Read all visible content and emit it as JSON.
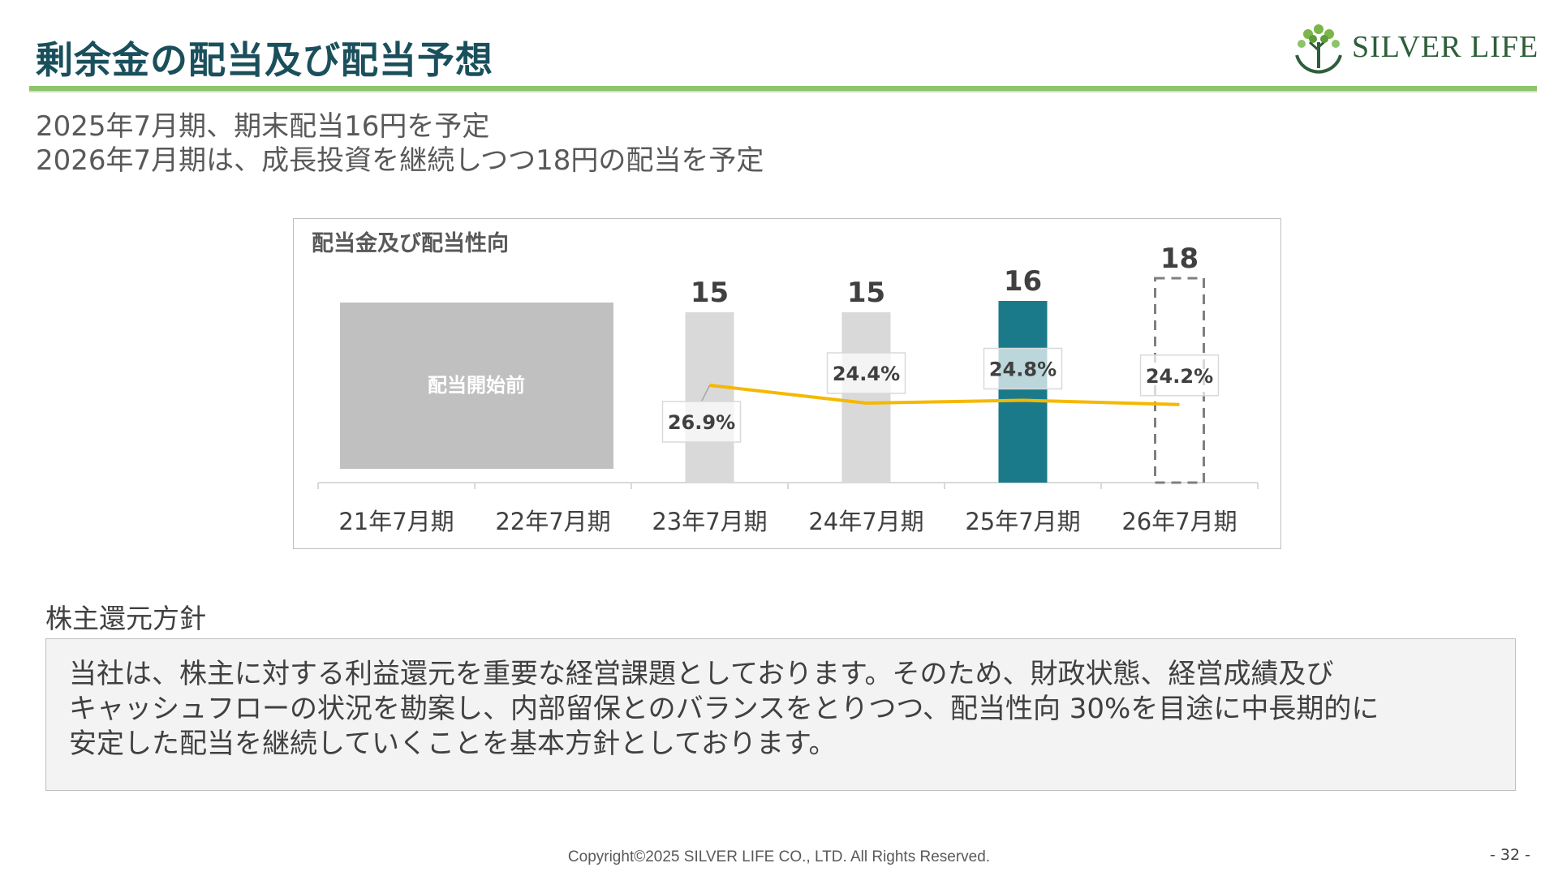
{
  "header": {
    "title": "剰余金の配当及び配当予想",
    "logo_text": "SILVER LIFE"
  },
  "lead": {
    "line1": "2025年7月期、期末配当16円を予定",
    "line2": "2026年7月期は、成長投資を継続しつつ18円の配当を予定"
  },
  "chart_data": {
    "type": "bar",
    "title": "配当金及び配当性向",
    "categories": [
      "21年7月期",
      "22年7月期",
      "23年7月期",
      "24年7月期",
      "25年7月期",
      "26年7月期"
    ],
    "pre_dividend_label": "配当開始前",
    "series": [
      {
        "values": [
          null,
          null,
          15,
          15,
          16,
          18
        ],
        "value_labels": [
          "",
          "",
          "15",
          "15",
          "16",
          "18"
        ]
      },
      {
        "values": [
          null,
          null,
          26.9,
          24.4,
          24.8,
          24.2
        ],
        "value_labels": [
          "",
          "",
          "26.9%",
          "24.4%",
          "24.8%",
          "24.2%"
        ]
      }
    ],
    "bar_colors": [
      "#d9d9d9",
      "#d9d9d9",
      "#d9d9d9",
      "#d9d9d9",
      "#1b7a8a",
      "none"
    ],
    "forecast_index": 5,
    "line_color": "#f5b800",
    "pre_dividend_color": "#c0c0c0"
  },
  "policy": {
    "heading": "株主還元方針",
    "lines": [
      "当社は、株主に対する利益還元を重要な経営課題としております。そのため、財政状態、経営成績及び",
      "キャッシュフローの状況を勘案し、内部留保とのバランスをとりつつ、配当性向 30%を目途に中長期的に",
      "安定した配当を継続していくことを基本方針としております。"
    ]
  },
  "footer": {
    "copyright": "Copyright©2025 SILVER LIFE CO., LTD.  All Rights Reserved.",
    "page": "- 32 -"
  }
}
